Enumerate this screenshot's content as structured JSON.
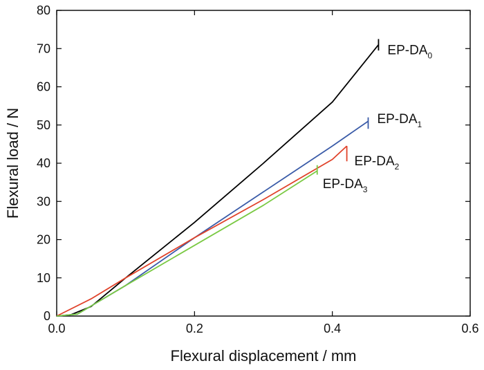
{
  "chart_data": {
    "type": "line",
    "title": "",
    "xlabel": "Flexural displacement / mm",
    "ylabel": "Flexural load / N",
    "xlim": [
      0,
      0.6
    ],
    "ylim": [
      0,
      80
    ],
    "x_ticks": [
      "0.0",
      "0.2",
      "0.4",
      "0.6"
    ],
    "y_ticks": [
      "0",
      "10",
      "20",
      "30",
      "40",
      "50",
      "60",
      "70",
      "80"
    ],
    "grid": false,
    "legend": "none",
    "series": [
      {
        "name_main": "EP-DA",
        "name_sub": "0",
        "color": "#000000",
        "points": [
          [
            0.0,
            0.0
          ],
          [
            0.02,
            0.3
          ],
          [
            0.05,
            2.5
          ],
          [
            0.1,
            10.0
          ],
          [
            0.2,
            24.5
          ],
          [
            0.3,
            40.0
          ],
          [
            0.4,
            56.0
          ],
          [
            0.467,
            71.0
          ]
        ],
        "break": [
          [
            0.467,
            72.5
          ],
          [
            0.467,
            69.5
          ]
        ]
      },
      {
        "name_main": "EP-DA",
        "name_sub": "1",
        "color": "#3a5ba8",
        "points": [
          [
            0.0,
            0.0
          ],
          [
            0.03,
            0.5
          ],
          [
            0.1,
            8.0
          ],
          [
            0.2,
            20.5
          ],
          [
            0.3,
            32.5
          ],
          [
            0.4,
            44.5
          ],
          [
            0.452,
            51.0
          ]
        ],
        "break": [
          [
            0.452,
            52.0
          ],
          [
            0.452,
            49.0
          ]
        ]
      },
      {
        "name_main": "EP-DA",
        "name_sub": "2",
        "color": "#e0422a",
        "points": [
          [
            0.0,
            0.0
          ],
          [
            0.05,
            4.5
          ],
          [
            0.1,
            10.0
          ],
          [
            0.2,
            20.5
          ],
          [
            0.3,
            30.5
          ],
          [
            0.4,
            41.0
          ],
          [
            0.421,
            44.5
          ]
        ],
        "break": [
          [
            0.421,
            44.5
          ],
          [
            0.421,
            40.5
          ]
        ]
      },
      {
        "name_main": "EP-DA",
        "name_sub": "3",
        "color": "#7ac943",
        "points": [
          [
            0.0,
            0.0
          ],
          [
            0.03,
            0.5
          ],
          [
            0.1,
            8.0
          ],
          [
            0.2,
            18.5
          ],
          [
            0.3,
            29.0
          ],
          [
            0.378,
            38.0
          ]
        ],
        "break": [
          [
            0.378,
            39.5
          ],
          [
            0.378,
            37.0
          ]
        ]
      }
    ],
    "labels": [
      {
        "series": 0,
        "x": 0.48,
        "y": 68.5
      },
      {
        "series": 1,
        "x": 0.465,
        "y": 50.5
      },
      {
        "series": 2,
        "x": 0.432,
        "y": 39.5
      },
      {
        "series": 3,
        "x": 0.386,
        "y": 33.5
      }
    ]
  }
}
